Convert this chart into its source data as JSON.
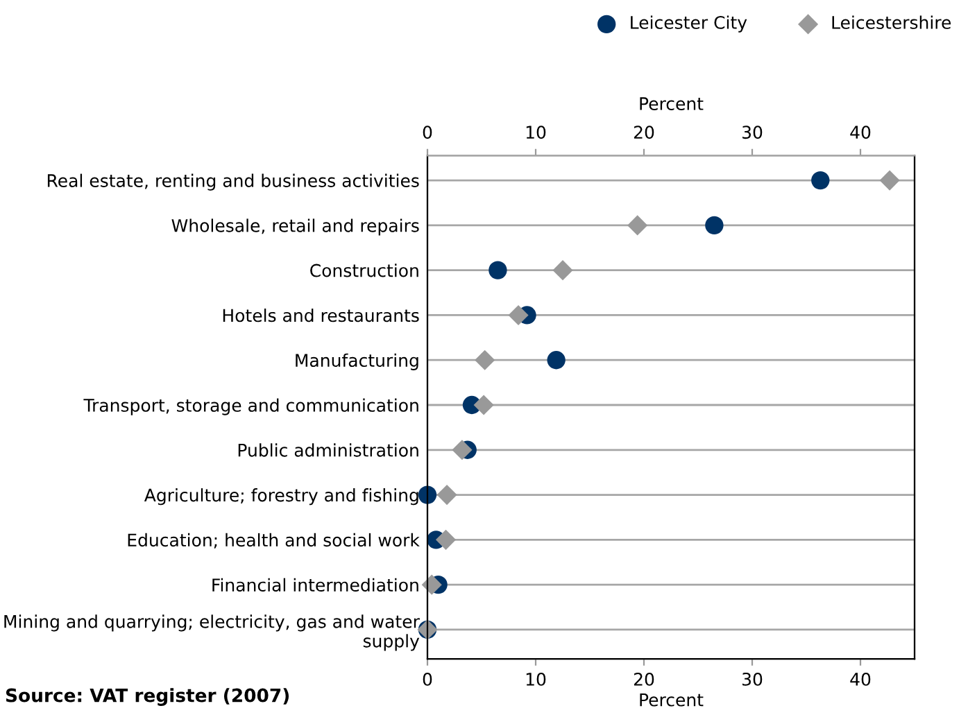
{
  "chart_data": {
    "type": "scatter",
    "orientation": "horizontal",
    "categories": [
      "Real estate, renting and business activities",
      "Wholesale, retail and repairs",
      "Construction",
      "Hotels and restaurants",
      "Manufacturing",
      "Transport, storage and communication",
      "Public administration",
      "Agriculture; forestry and fishing",
      "Education; health and social work",
      "Financial intermediation",
      "Mining and quarrying; electricity, gas and water supply"
    ],
    "series": [
      {
        "name": "Leicester City",
        "color": "#003366",
        "marker": "circle",
        "values": [
          36.3,
          26.5,
          6.5,
          9.2,
          11.9,
          4.1,
          3.7,
          0,
          0.8,
          1.0,
          0
        ]
      },
      {
        "name": "Leicestershire",
        "color": "#999999",
        "marker": "diamond",
        "values": [
          42.7,
          19.4,
          12.5,
          8.4,
          5.3,
          5.2,
          3.2,
          1.8,
          1.7,
          0.4,
          0
        ]
      }
    ],
    "xlabel": "Percent",
    "x2label": "Percent",
    "xlim": [
      0,
      45
    ],
    "xticks": [
      0,
      10,
      20,
      30,
      40
    ],
    "x2lim": [
      0,
      45
    ],
    "x2ticks": [
      0,
      10,
      20,
      30,
      40
    ],
    "grid": "y",
    "legend": "top right",
    "annotations": [
      "Source: VAT register (2007)"
    ]
  }
}
